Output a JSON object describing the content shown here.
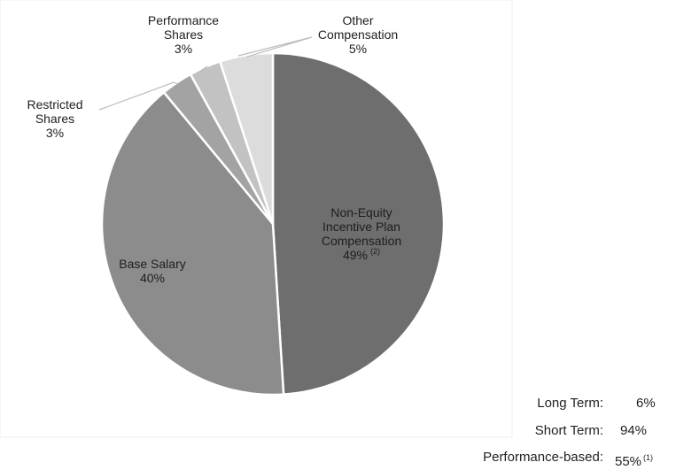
{
  "chart_data": {
    "type": "pie",
    "start": "12 o'clock",
    "direction": "clockwise",
    "slices": [
      {
        "name": "Non-Equity Incentive Plan Compensation",
        "label_lines": [
          "Non-Equity",
          "Incentive Plan",
          "Compensation"
        ],
        "value": 49,
        "value_label": "49%",
        "footnote": "(2)",
        "color": "#6e6e6e"
      },
      {
        "name": "Base Salary",
        "label_lines": [
          "Base Salary"
        ],
        "value": 40,
        "value_label": "40%",
        "footnote": "",
        "color": "#8c8c8c"
      },
      {
        "name": "Restricted Shares",
        "label_lines": [
          "Restricted",
          "Shares"
        ],
        "value": 3,
        "value_label": "3%",
        "footnote": "",
        "color": "#a3a3a3"
      },
      {
        "name": "Performance Shares",
        "label_lines": [
          "Performance",
          "Shares"
        ],
        "value": 3,
        "value_label": "3%",
        "footnote": "",
        "color": "#c2c2c2"
      },
      {
        "name": "Other Compensation",
        "label_lines": [
          "Other",
          "Compensation"
        ],
        "value": 5,
        "value_label": "5%",
        "footnote": "",
        "color": "#dcdcdc"
      }
    ],
    "slice_border_color": "#ffffff",
    "leader_line_color": "#bdbdbd"
  },
  "summary": [
    {
      "label": "Long Term:",
      "value": "6%",
      "footnote": ""
    },
    {
      "label": "Short Term:",
      "value": "94%",
      "footnote": ""
    },
    {
      "label": "Performance-based:",
      "value": "55%",
      "footnote": "(1)"
    }
  ]
}
